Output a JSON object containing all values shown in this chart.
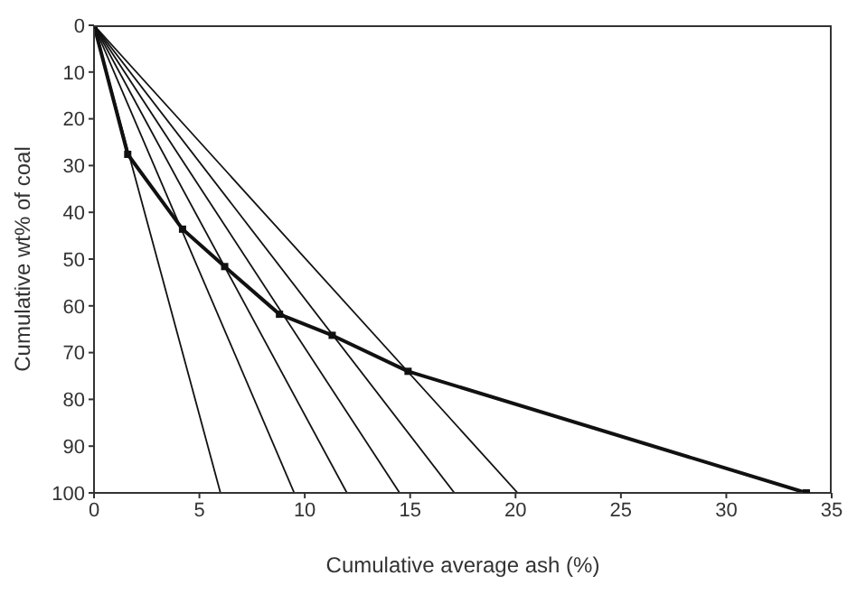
{
  "chart_data": {
    "type": "line",
    "xlabel": "Cumulative average ash (%)",
    "ylabel": "Cumulative wt% of coal",
    "xlim": [
      0,
      35
    ],
    "xticks": [
      0,
      5,
      10,
      15,
      20,
      25,
      30,
      35
    ],
    "ylim": [
      100,
      0
    ],
    "yticks": [
      0,
      10,
      20,
      30,
      40,
      50,
      60,
      70,
      80,
      90,
      100
    ],
    "grid": false,
    "legend": false,
    "line_style": "solid",
    "series": [
      {
        "color": "#111111",
        "marker": "square",
        "x": [
          0,
          1.6,
          4.2,
          6.2,
          8.8,
          11.3,
          14.9,
          33.8
        ],
        "values": [
          0,
          27.6,
          43.6,
          51.6,
          61.8,
          66.3,
          74,
          100
        ]
      },
      {
        "color": "#111111",
        "marker": "none",
        "x": [
          0,
          6
        ],
        "values": [
          0,
          100
        ]
      },
      {
        "color": "#111111",
        "marker": "none",
        "x": [
          0,
          9.5
        ],
        "values": [
          0,
          100
        ]
      },
      {
        "color": "#111111",
        "marker": "none",
        "x": [
          0,
          12
        ],
        "values": [
          0,
          100
        ]
      },
      {
        "color": "#111111",
        "marker": "none",
        "x": [
          0,
          14.5
        ],
        "values": [
          0,
          100
        ]
      },
      {
        "color": "#111111",
        "marker": "none",
        "x": [
          0,
          17.1
        ],
        "values": [
          0,
          100
        ]
      },
      {
        "color": "#111111",
        "marker": "none",
        "x": [
          0,
          20.1
        ],
        "values": [
          0,
          100
        ]
      }
    ]
  }
}
